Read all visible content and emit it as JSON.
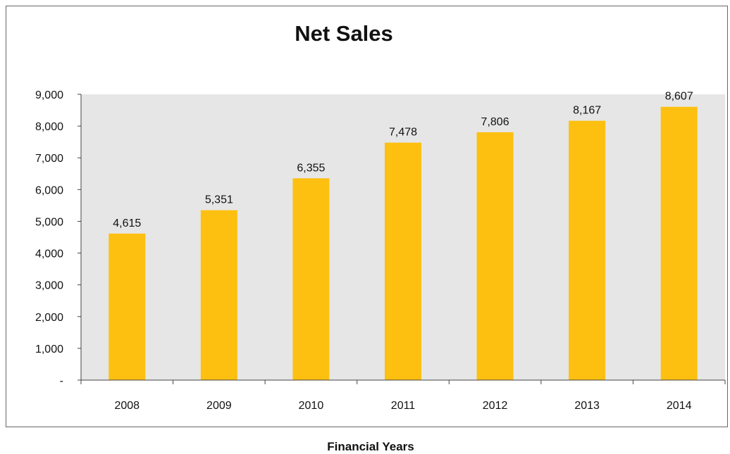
{
  "chart_data": {
    "type": "bar",
    "title": "Net Sales",
    "xlabel": "Financial Years",
    "ylabel": "",
    "categories": [
      "2008",
      "2009",
      "2010",
      "2011",
      "2012",
      "2013",
      "2014"
    ],
    "values": [
      4615,
      5351,
      6355,
      7478,
      7806,
      8167,
      8607
    ],
    "value_labels": [
      "4,615",
      "5,351",
      "6,355",
      "7,478",
      "7,806",
      "8,167",
      "8,607"
    ],
    "ylim": [
      0,
      9000
    ],
    "y_ticks": [
      0,
      1000,
      2000,
      3000,
      4000,
      5000,
      6000,
      7000,
      8000,
      9000
    ],
    "y_tick_labels": [
      "-",
      "1,000",
      "2,000",
      "3,000",
      "4,000",
      "5,000",
      "6,000",
      "7,000",
      "8,000",
      "9,000"
    ],
    "grid": false,
    "legend": "none",
    "colors": {
      "bar": "#FDC010",
      "plot_background": "#E6E6E6",
      "frame": "#666666",
      "axis": "#444444",
      "text": "#111111"
    }
  }
}
